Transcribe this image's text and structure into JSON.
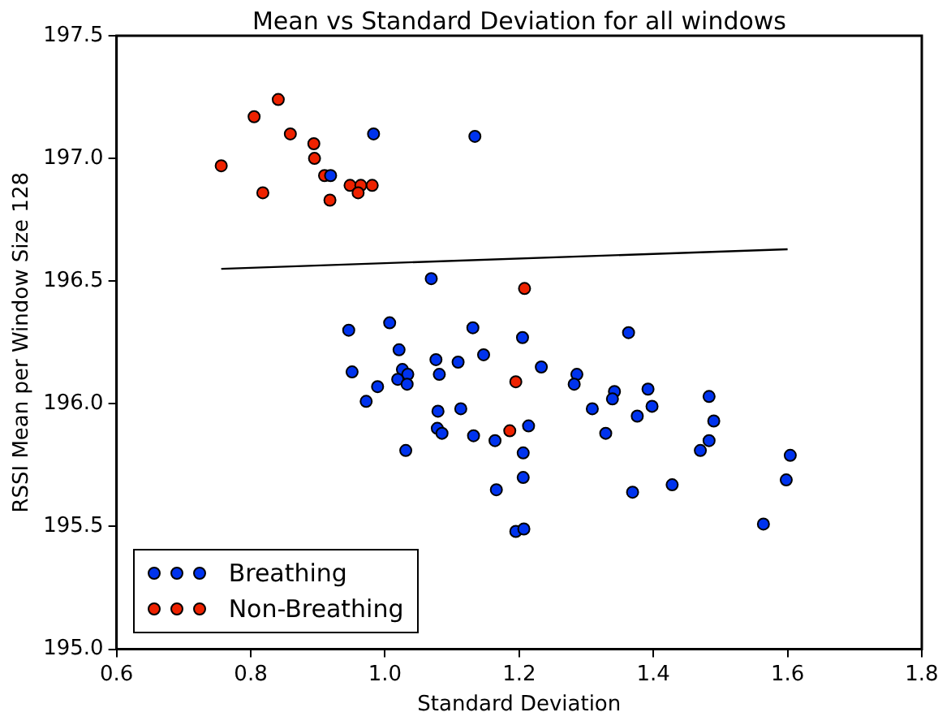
{
  "chart_data": {
    "type": "scatter",
    "title": "Mean vs Standard Deviation for all windows",
    "xlabel": "Standard Deviation",
    "ylabel": "RSSI Mean per Window Size 128",
    "xlim": [
      0.6,
      1.8
    ],
    "xticks": [
      {
        "value": 0.6,
        "label": "0.6"
      },
      {
        "value": 0.8,
        "label": "0.8"
      },
      {
        "value": 1.0,
        "label": "1.0"
      },
      {
        "value": 1.2,
        "label": "1.2"
      },
      {
        "value": 1.4,
        "label": "1.4"
      },
      {
        "value": 1.6,
        "label": "1.6"
      },
      {
        "value": 1.8,
        "label": "1.8"
      }
    ],
    "ylim": [
      195.0,
      197.5
    ],
    "yticks": [
      {
        "value": 195.0,
        "label": "195.0"
      },
      {
        "value": 195.5,
        "label": "195.5"
      },
      {
        "value": 196.0,
        "label": "196.0"
      },
      {
        "value": 196.5,
        "label": "196.5"
      },
      {
        "value": 197.0,
        "label": "197.0"
      },
      {
        "value": 197.5,
        "label": "197.5"
      }
    ],
    "grid": false,
    "legend": "bottom left",
    "marker": "circle",
    "series": [
      {
        "name": "Breathing",
        "color": "#0033ee",
        "x": [
          0.919,
          0.983,
          1.134,
          1.069,
          0.946,
          1.007,
          1.131,
          1.205,
          1.021,
          1.147,
          1.076,
          1.109,
          1.233,
          0.951,
          1.026,
          1.034,
          1.019,
          1.081,
          1.033,
          1.286,
          1.282,
          0.989,
          0.972,
          1.342,
          1.339,
          1.079,
          1.113,
          1.309,
          1.078,
          1.085,
          1.132,
          1.164,
          1.214,
          1.329,
          1.031,
          1.206,
          1.206,
          1.166,
          1.195,
          1.207,
          1.363,
          1.392,
          1.398,
          1.376,
          1.483,
          1.49,
          1.483,
          1.47,
          1.604,
          1.598,
          1.369,
          1.428,
          1.564
        ],
        "values": [
          196.93,
          197.1,
          197.09,
          196.51,
          196.3,
          196.33,
          196.31,
          196.27,
          196.22,
          196.2,
          196.18,
          196.17,
          196.15,
          196.13,
          196.14,
          196.12,
          196.1,
          196.12,
          196.08,
          196.12,
          196.08,
          196.07,
          196.01,
          196.05,
          196.02,
          195.97,
          195.98,
          195.98,
          195.9,
          195.88,
          195.87,
          195.85,
          195.91,
          195.88,
          195.81,
          195.8,
          195.7,
          195.65,
          195.48,
          195.49,
          196.29,
          196.06,
          195.99,
          195.95,
          196.03,
          195.93,
          195.85,
          195.81,
          195.79,
          195.69,
          195.64,
          195.67,
          195.51
        ]
      },
      {
        "name": "Non-Breathing",
        "color": "#ee2200",
        "x": [
          0.756,
          0.805,
          0.841,
          0.859,
          0.894,
          0.895,
          0.91,
          0.818,
          0.918,
          0.948,
          0.964,
          0.96,
          0.981,
          1.208,
          1.195,
          1.186
        ],
        "values": [
          196.97,
          197.17,
          197.24,
          197.1,
          197.06,
          197.0,
          196.93,
          196.86,
          196.83,
          196.89,
          196.89,
          196.86,
          196.89,
          196.47,
          196.09,
          195.89
        ]
      },
      {
        "type": "line",
        "marker": "none",
        "color": "#000000",
        "x": [
          0.756,
          1.6
        ],
        "values": [
          196.55,
          196.63
        ]
      }
    ]
  }
}
